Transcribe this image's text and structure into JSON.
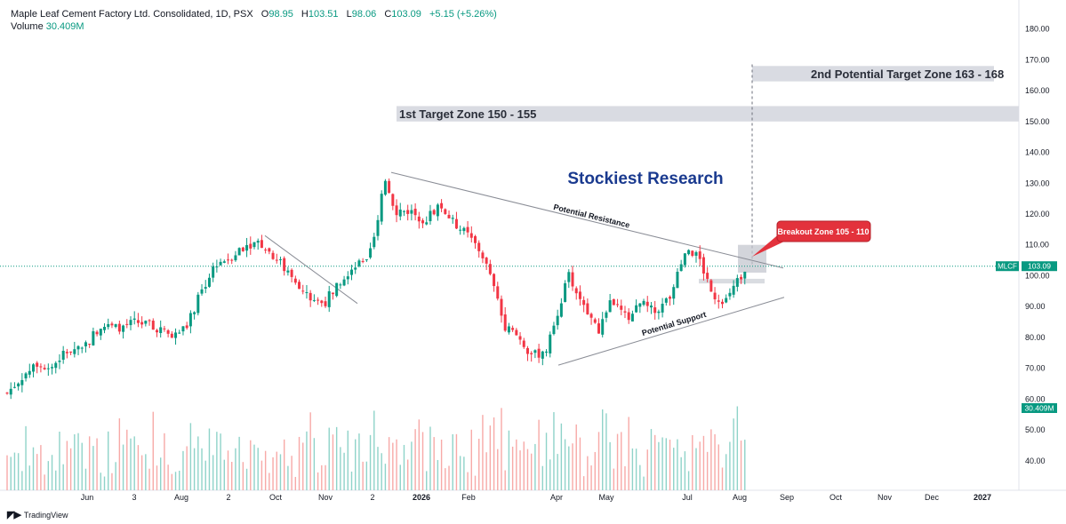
{
  "header": {
    "title": "Maple Leaf Cement Factory Ltd. Consolidated, 1D, PSX",
    "open_label": "O",
    "open": "98.95",
    "high_label": "H",
    "high": "103.51",
    "low_label": "L",
    "low": "98.06",
    "close_label": "C",
    "close": "103.09",
    "change": "+5.15 (+5.26%)",
    "volume_label": "Volume",
    "volume": "30.409M"
  },
  "footer": {
    "logo_icon": "tradingview-logo-icon",
    "brand": "TradingView"
  },
  "colors": {
    "up": "#089981",
    "down": "#F23645",
    "up_volume": "#8fd3c9",
    "down_volume": "#f7a9a7",
    "brand_text": "#1a3a8f",
    "callout": "#e3323c",
    "zone": "#d1d4dc"
  },
  "chart_data": {
    "type": "candlestick",
    "symbol": "MLCF",
    "last_price_label": "103.09",
    "last_volume_label": "30.409M",
    "x_ticks": [
      "Jun",
      "3",
      "Aug",
      "2",
      "Oct",
      "Nov",
      "2",
      "2026",
      "Feb",
      "Apr",
      "May",
      "Jul",
      "Aug",
      "Sep",
      "Oct",
      "Nov",
      "Dec",
      "2027"
    ],
    "y_ticks": [
      "180.00",
      "170.00",
      "160.00",
      "150.00",
      "140.00",
      "130.00",
      "120.00",
      "110.00",
      "100.00",
      "90.00",
      "80.00",
      "70.00",
      "60.00",
      "50.00",
      "40.00"
    ],
    "ylim": [
      32,
      183
    ],
    "price_path": [
      {
        "day": 0,
        "price": 62
      },
      {
        "day": 10,
        "price": 67
      },
      {
        "day": 20,
        "price": 72
      },
      {
        "day": 30,
        "price": 70
      },
      {
        "day": 40,
        "price": 75
      },
      {
        "day": 55,
        "price": 78
      },
      {
        "day": 65,
        "price": 84
      },
      {
        "day": 75,
        "price": 83
      },
      {
        "day": 90,
        "price": 85
      },
      {
        "day": 105,
        "price": 83
      },
      {
        "day": 115,
        "price": 80
      },
      {
        "day": 125,
        "price": 84
      },
      {
        "day": 135,
        "price": 95
      },
      {
        "day": 145,
        "price": 104
      },
      {
        "day": 155,
        "price": 106
      },
      {
        "day": 165,
        "price": 110
      },
      {
        "day": 175,
        "price": 111
      },
      {
        "day": 190,
        "price": 104
      },
      {
        "day": 200,
        "price": 97
      },
      {
        "day": 210,
        "price": 93
      },
      {
        "day": 220,
        "price": 91
      },
      {
        "day": 230,
        "price": 98
      },
      {
        "day": 240,
        "price": 103
      },
      {
        "day": 250,
        "price": 104
      },
      {
        "day": 258,
        "price": 118
      },
      {
        "day": 262,
        "price": 132
      },
      {
        "day": 270,
        "price": 121
      },
      {
        "day": 280,
        "price": 121
      },
      {
        "day": 290,
        "price": 118
      },
      {
        "day": 300,
        "price": 123
      },
      {
        "day": 310,
        "price": 117
      },
      {
        "day": 320,
        "price": 113
      },
      {
        "day": 330,
        "price": 107
      },
      {
        "day": 338,
        "price": 96
      },
      {
        "day": 345,
        "price": 84
      },
      {
        "day": 355,
        "price": 80
      },
      {
        "day": 365,
        "price": 74
      },
      {
        "day": 375,
        "price": 76
      },
      {
        "day": 382,
        "price": 88
      },
      {
        "day": 390,
        "price": 100
      },
      {
        "day": 400,
        "price": 90
      },
      {
        "day": 410,
        "price": 82
      },
      {
        "day": 420,
        "price": 92
      },
      {
        "day": 430,
        "price": 86
      },
      {
        "day": 440,
        "price": 91
      },
      {
        "day": 450,
        "price": 88
      },
      {
        "day": 460,
        "price": 93
      },
      {
        "day": 470,
        "price": 106
      },
      {
        "day": 478,
        "price": 108
      },
      {
        "day": 485,
        "price": 100
      },
      {
        "day": 492,
        "price": 93
      },
      {
        "day": 500,
        "price": 92
      },
      {
        "day": 507,
        "price": 98
      },
      {
        "day": 513,
        "price": 103
      }
    ],
    "volume_range": [
      32,
      70
    ],
    "annotations": {
      "title_text": "Stockiest Research",
      "target1_label": "1st Target Zone 150 - 155",
      "target1_range": [
        150,
        155
      ],
      "target2_label": "2nd Potential Target Zone 163 - 168",
      "target2_range": [
        163,
        168
      ],
      "breakout_label": "Breakout Zone 105 - 110",
      "resistance_label": "Potential Resistance",
      "support_label": "Potential Support"
    }
  }
}
